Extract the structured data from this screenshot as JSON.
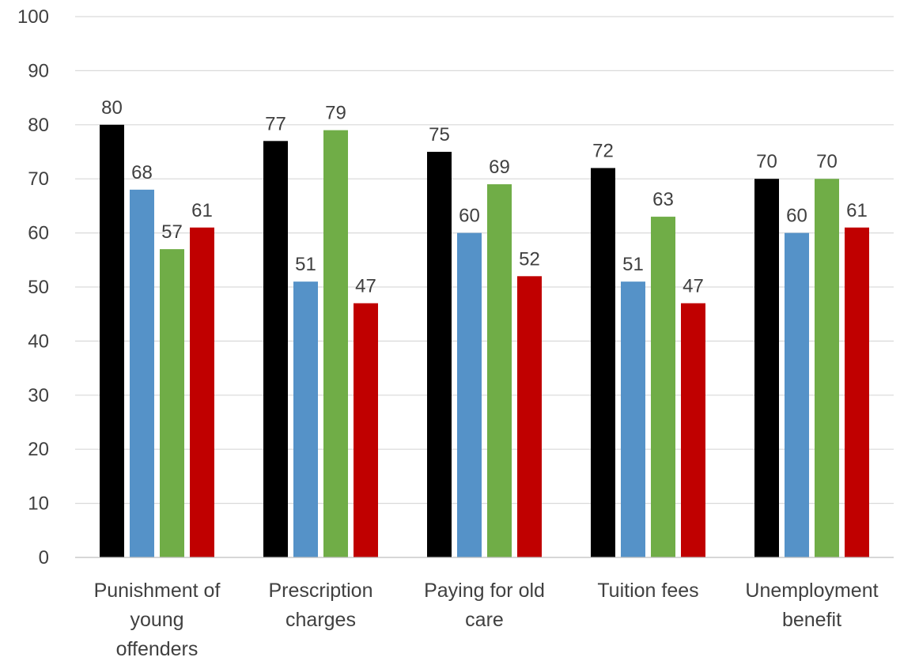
{
  "chart_data": {
    "type": "bar",
    "title": "",
    "xlabel": "",
    "ylabel": "",
    "ylim": [
      0,
      100
    ],
    "yticks": [
      0,
      10,
      20,
      30,
      40,
      50,
      60,
      70,
      80,
      90,
      100
    ],
    "grid": true,
    "legend": "none",
    "categories": [
      [
        "Punishment of",
        "young",
        "offenders"
      ],
      [
        "Prescription",
        "charges"
      ],
      [
        "Paying for old",
        "care"
      ],
      [
        "Tuition fees"
      ],
      [
        "Unemployment",
        "benefit"
      ]
    ],
    "series": [
      {
        "color": "#000000",
        "values": [
          80,
          77,
          75,
          72,
          70
        ]
      },
      {
        "color": "#5592c8",
        "values": [
          68,
          51,
          60,
          51,
          60
        ]
      },
      {
        "color": "#70ad47",
        "values": [
          57,
          79,
          69,
          63,
          70
        ]
      },
      {
        "color": "#c00000",
        "values": [
          61,
          47,
          52,
          47,
          61
        ]
      }
    ]
  }
}
